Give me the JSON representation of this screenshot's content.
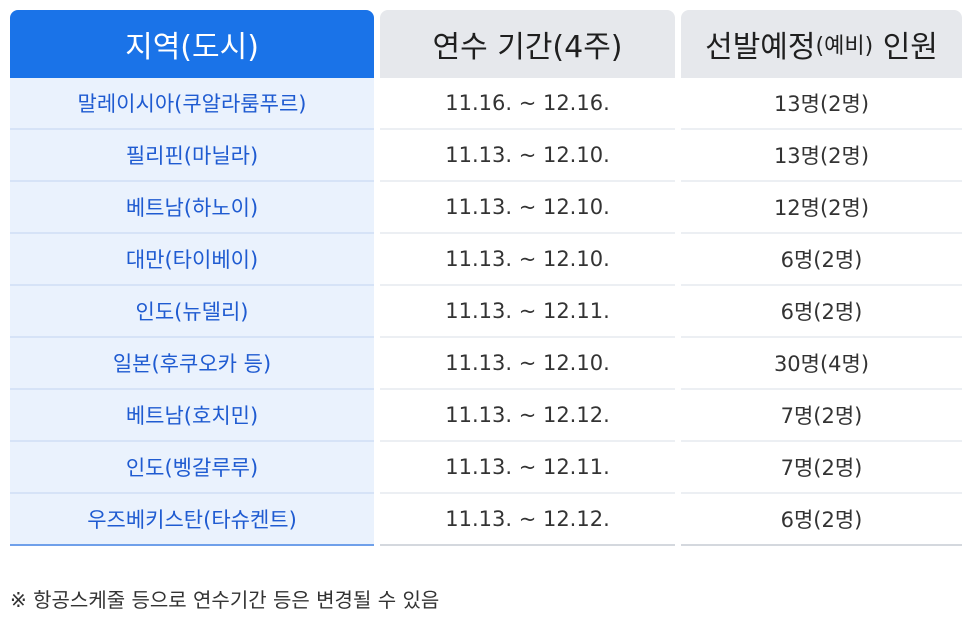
{
  "table": {
    "headers": {
      "region": "지역(도시)",
      "period": "연수 기간(4주)",
      "count_main": "선발예정",
      "count_sub": "(예비)",
      "count_tail": " 인원"
    },
    "rows": [
      {
        "region": "말레이시아(쿠알라룸푸르)",
        "period": "11.16. ~ 12.16.",
        "count": "13명(2명)"
      },
      {
        "region": "필리핀(마닐라)",
        "period": "11.13. ~ 12.10.",
        "count": "13명(2명)"
      },
      {
        "region": "베트남(하노이)",
        "period": "11.13. ~ 12.10.",
        "count": "12명(2명)"
      },
      {
        "region": "대만(타이베이)",
        "period": "11.13. ~ 12.10.",
        "count": "6명(2명)"
      },
      {
        "region": "인도(뉴델리)",
        "period": "11.13. ~ 12.11.",
        "count": "6명(2명)"
      },
      {
        "region": "일본(후쿠오카 등)",
        "period": "11.13. ~ 12.10.",
        "count": "30명(4명)"
      },
      {
        "region": "베트남(호치민)",
        "period": "11.13. ~ 12.12.",
        "count": "7명(2명)"
      },
      {
        "region": "인도(벵갈루루)",
        "period": "11.13. ~ 12.11.",
        "count": "7명(2명)"
      },
      {
        "region": "우즈베키스탄(타슈켄트)",
        "period": "11.13. ~ 12.12.",
        "count": "6명(2명)"
      }
    ]
  },
  "note": "※ 항공스케줄 등으로 연수기간 등은 변경될 수 있음",
  "colors": {
    "header_accent": "#1a73e8",
    "header_gray": "#e6e8ec",
    "region_bg": "#eaf2fd",
    "region_text": "#1f5bd1"
  }
}
